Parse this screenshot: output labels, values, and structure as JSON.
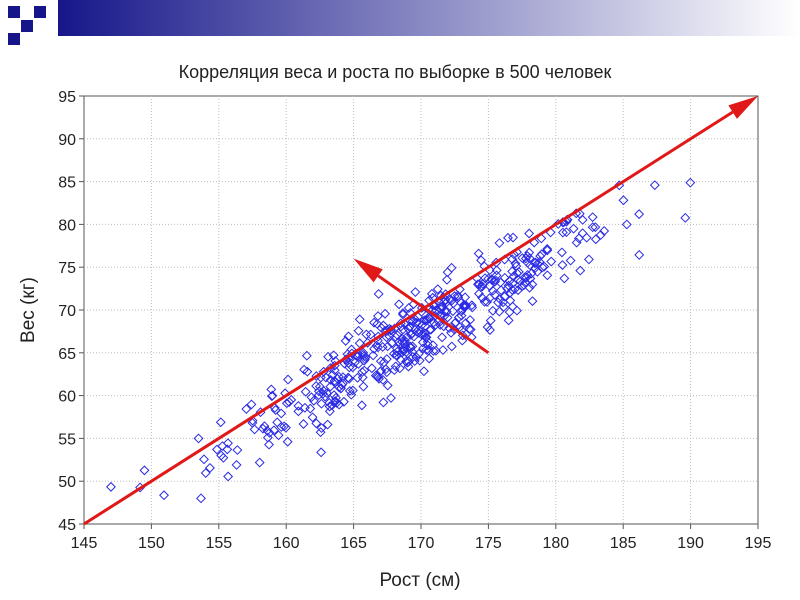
{
  "slide": {
    "banner_color": "#16168a",
    "banner_gradient_end": "#ffffff"
  },
  "chart_data": {
    "type": "scatter",
    "title": "Корреляция веса и роста по выборке в 500 человек",
    "xlabel": "Рост (см)",
    "ylabel": "Вес (кг)",
    "xlim": [
      145,
      195
    ],
    "ylim": [
      45,
      95
    ],
    "xticks": [
      145,
      150,
      155,
      160,
      165,
      170,
      175,
      180,
      185,
      190,
      195
    ],
    "yticks": [
      45,
      50,
      55,
      60,
      65,
      70,
      75,
      80,
      85,
      90,
      95
    ],
    "grid": true,
    "marker_color": "#2a2ae6",
    "arrow_color": "#e01818",
    "points_count": 500,
    "trend": {
      "slope": 0.9,
      "intercept": -85.5,
      "noise_sd": 2.2,
      "x_mean": 170,
      "x_sd": 7.2
    },
    "annotations": [
      {
        "type": "arrow",
        "name": "main-axis",
        "from": [
          145,
          45
        ],
        "to": [
          195,
          95
        ]
      },
      {
        "type": "arrow",
        "name": "perpendicular-axis",
        "from": [
          175,
          65
        ],
        "to": [
          165,
          76
        ]
      }
    ]
  }
}
